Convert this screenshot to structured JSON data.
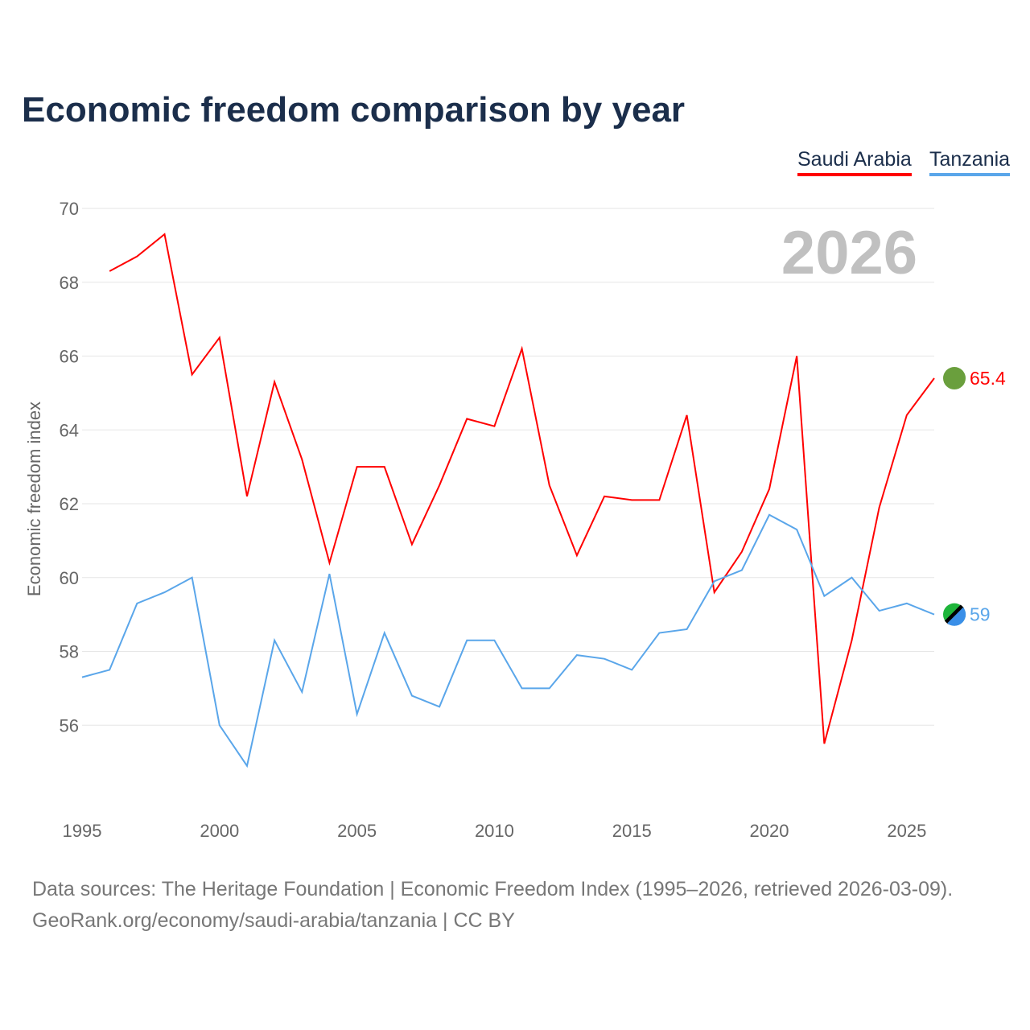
{
  "title": "Economic freedom comparison by year",
  "footer": {
    "line1": "Data sources: The Heritage Foundation | Economic Freedom Index (1995–2026, retrieved 2026-03-09).",
    "line2": "GeoRank.org/economy/saudi-arabia/tanzania | CC BY"
  },
  "chart_data": {
    "type": "line",
    "title": "Economic freedom comparison by year",
    "ylabel": "Economic freedom index",
    "xlabel": "",
    "watermark_year": "2026",
    "xlim": [
      1995,
      2026
    ],
    "ylim": [
      54,
      70
    ],
    "x_ticks": [
      1995,
      2000,
      2005,
      2010,
      2015,
      2020,
      2025
    ],
    "y_ticks": [
      56,
      58,
      60,
      62,
      64,
      66,
      68,
      70
    ],
    "legend": "top-right",
    "series": [
      {
        "name": "Saudi Arabia",
        "color": "#ff0000",
        "end_label": "65.4",
        "x": [
          1996,
          1997,
          1998,
          1999,
          2000,
          2001,
          2002,
          2003,
          2004,
          2005,
          2006,
          2007,
          2008,
          2009,
          2010,
          2011,
          2012,
          2013,
          2014,
          2015,
          2016,
          2017,
          2018,
          2019,
          2020,
          2021,
          2022,
          2023,
          2024,
          2025,
          2026
        ],
        "values": [
          68.3,
          68.7,
          69.3,
          65.5,
          66.5,
          62.2,
          65.3,
          63.2,
          60.4,
          63.0,
          63.0,
          60.9,
          62.5,
          64.3,
          64.1,
          66.2,
          62.5,
          60.6,
          62.2,
          62.1,
          62.1,
          64.4,
          59.6,
          60.7,
          62.4,
          66.0,
          55.5,
          58.3,
          61.9,
          64.4,
          65.4
        ]
      },
      {
        "name": "Tanzania",
        "color": "#5aa6ea",
        "end_label": "59",
        "x": [
          1995,
          1996,
          1997,
          1998,
          1999,
          2000,
          2001,
          2002,
          2003,
          2004,
          2005,
          2006,
          2007,
          2008,
          2009,
          2010,
          2011,
          2012,
          2013,
          2014,
          2015,
          2016,
          2017,
          2018,
          2019,
          2020,
          2021,
          2022,
          2023,
          2024,
          2025,
          2026
        ],
        "values": [
          57.3,
          57.5,
          59.3,
          59.6,
          60.0,
          56.0,
          54.9,
          58.3,
          56.9,
          60.1,
          56.3,
          58.5,
          56.8,
          56.5,
          58.3,
          58.3,
          57.0,
          57.0,
          57.9,
          57.8,
          57.5,
          58.5,
          58.6,
          59.9,
          60.2,
          61.7,
          61.3,
          59.5,
          60.0,
          59.1,
          59.3,
          59.0
        ]
      }
    ]
  }
}
